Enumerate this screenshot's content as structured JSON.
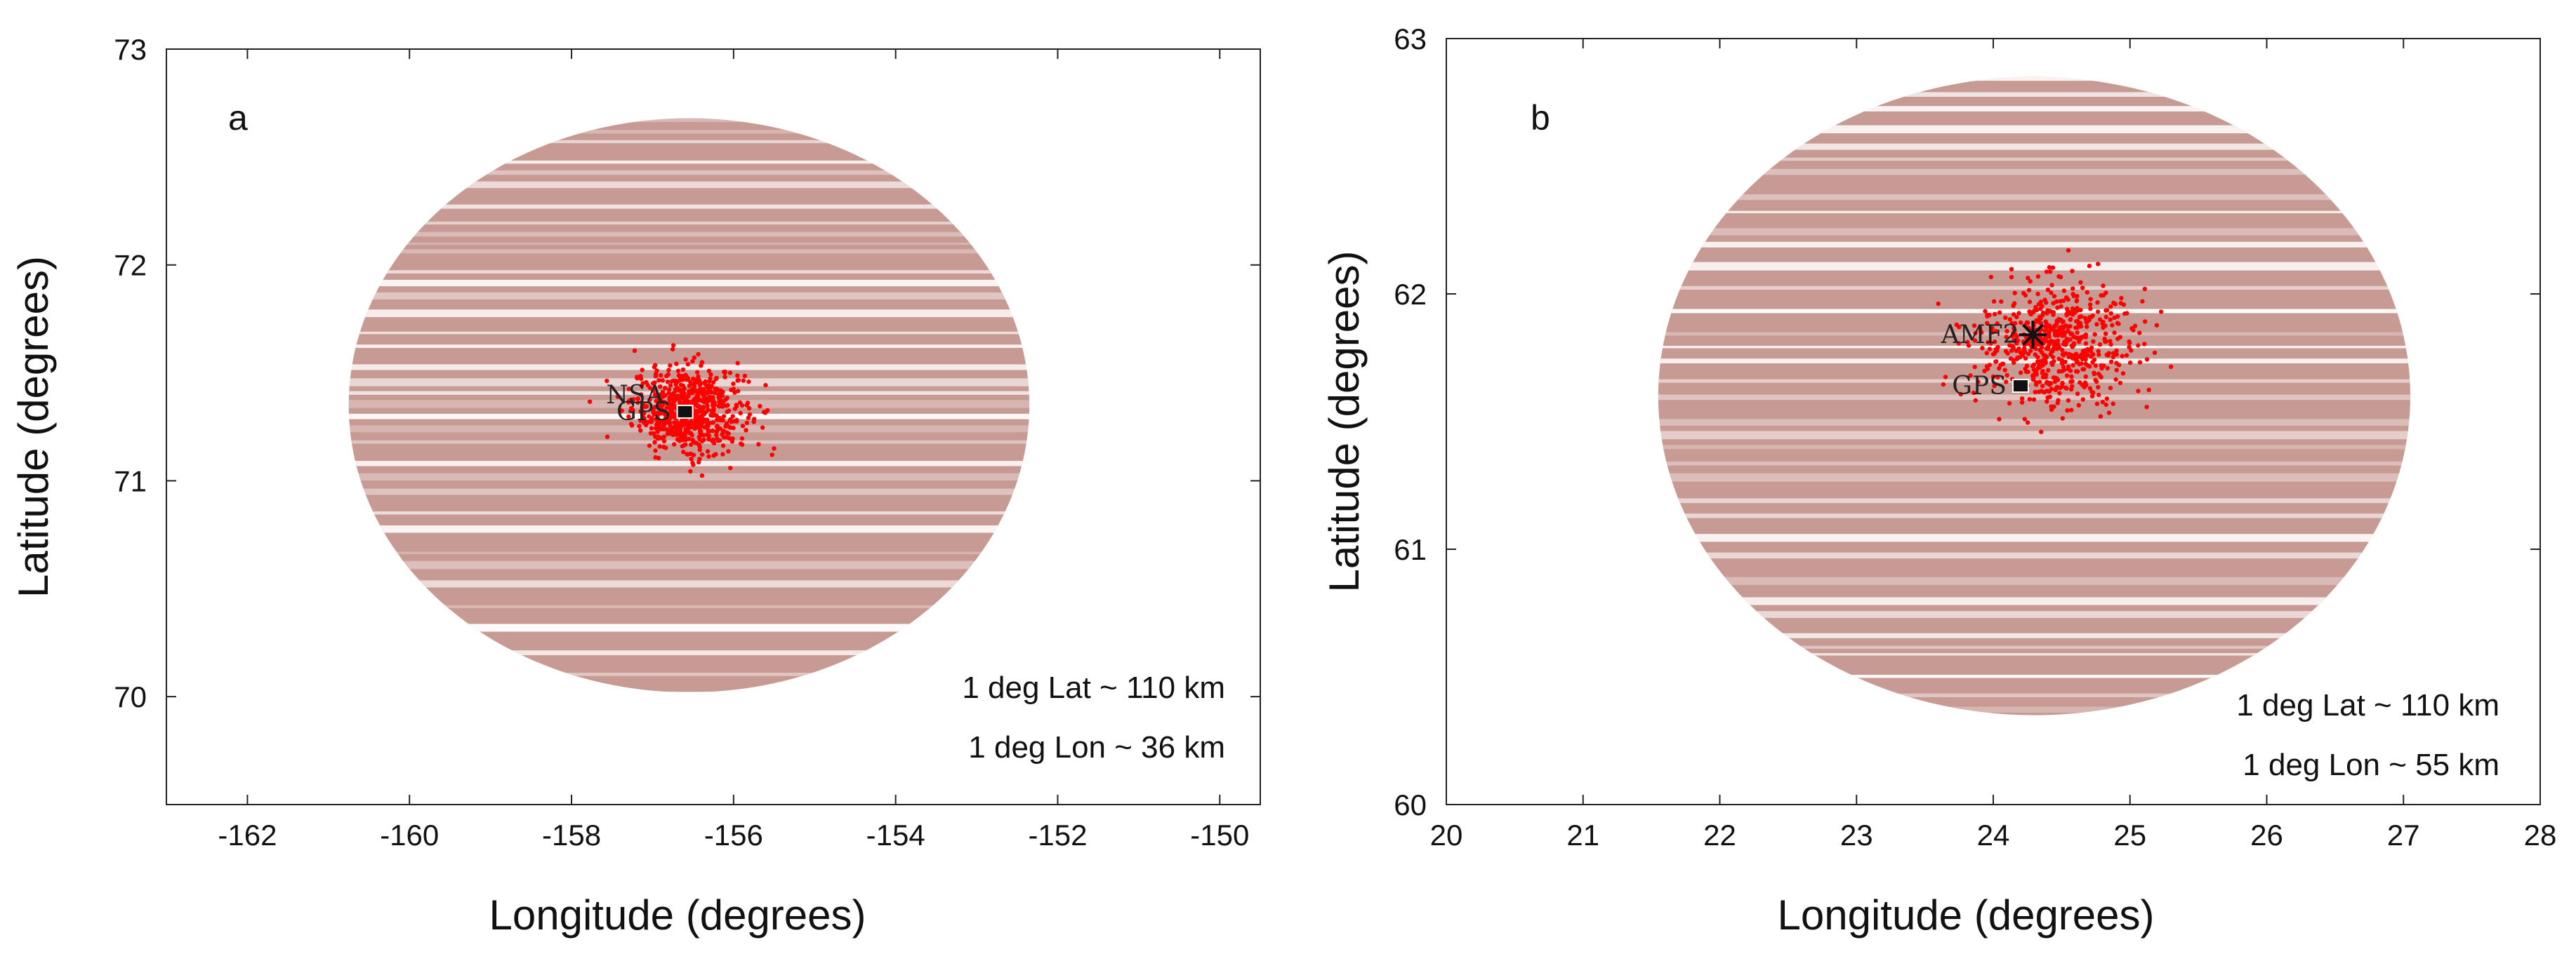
{
  "colors": {
    "ellipse": "#c89a94",
    "stripe": "#ffffff",
    "points": "#ff0000",
    "marker": "#111111",
    "axis": "#222222"
  },
  "chart_data": [
    {
      "type": "scatter",
      "panel_label": "a",
      "xlabel": "Longitude (degrees)",
      "ylabel": "Latitude (degrees)",
      "xlim": [
        -163,
        -149.5
      ],
      "ylim": [
        69.5,
        73
      ],
      "xticks": [
        -162,
        -160,
        -158,
        -156,
        -154,
        -152,
        -150
      ],
      "yticks": [
        70,
        71,
        72,
        73
      ],
      "coverage_ellipse": {
        "center_lon": -156.55,
        "center_lat": 71.35,
        "half_width_lon": 4.2,
        "half_height_lat": 1.33
      },
      "point_cloud": {
        "center_lon": -156.55,
        "center_lat": 71.33,
        "spread_lon": 0.35,
        "spread_lat": 0.1,
        "count": 700
      },
      "stations": [
        {
          "name": "NSA",
          "lon": -156.6,
          "lat": 71.32,
          "marker": "square",
          "label_side": "left-up"
        },
        {
          "name": "GPS",
          "lon": -156.6,
          "lat": 71.32,
          "marker": "square",
          "label_side": "left"
        }
      ],
      "notes": [
        "1 deg Lat ~ 110 km",
        "1 deg Lon ~ 36 km"
      ]
    },
    {
      "type": "scatter",
      "panel_label": "b",
      "xlabel": "Longitude (degrees)",
      "ylabel": "Latitude (degrees)",
      "xlim": [
        20,
        28
      ],
      "ylim": [
        60,
        63
      ],
      "xticks": [
        20,
        21,
        22,
        23,
        24,
        25,
        26,
        27,
        28
      ],
      "yticks": [
        60,
        61,
        62,
        63
      ],
      "coverage_ellipse": {
        "center_lon": 24.3,
        "center_lat": 61.6,
        "half_width_lon": 2.75,
        "half_height_lat": 1.25
      },
      "point_cloud": {
        "center_lon": 24.45,
        "center_lat": 61.8,
        "spread_lon": 0.28,
        "spread_lat": 0.12,
        "count": 650
      },
      "stations": [
        {
          "name": "AMF2",
          "lon": 24.29,
          "lat": 61.84,
          "marker": "star",
          "label_side": "left"
        },
        {
          "name": "GPS",
          "lon": 24.2,
          "lat": 61.64,
          "marker": "square",
          "label_side": "left"
        }
      ],
      "notes": [
        "1 deg Lat ~ 110 km",
        "1 deg Lon ~ 55 km"
      ]
    }
  ]
}
